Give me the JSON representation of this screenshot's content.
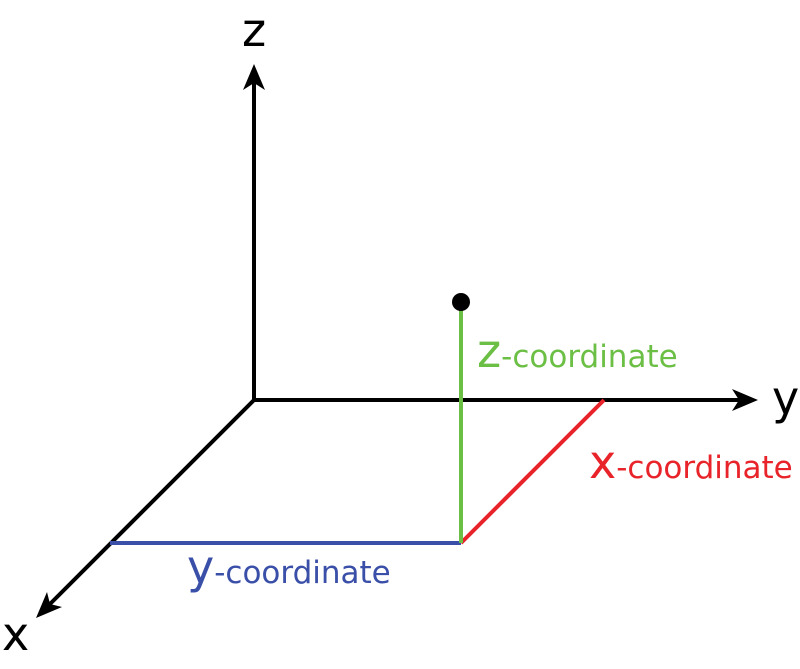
{
  "axes": {
    "x_label": "x",
    "y_label": "y",
    "z_label": "z"
  },
  "coordinates": {
    "z": {
      "var": "z",
      "suffix": "-coordinate",
      "color": "#6cbf45"
    },
    "x": {
      "var": "x",
      "suffix": "-coordinate",
      "color": "#e8232a"
    },
    "y": {
      "var": "y",
      "suffix": "-coordinate",
      "color": "#3a4fa8"
    }
  },
  "colors": {
    "axis": "#000000",
    "point": "#000000"
  }
}
